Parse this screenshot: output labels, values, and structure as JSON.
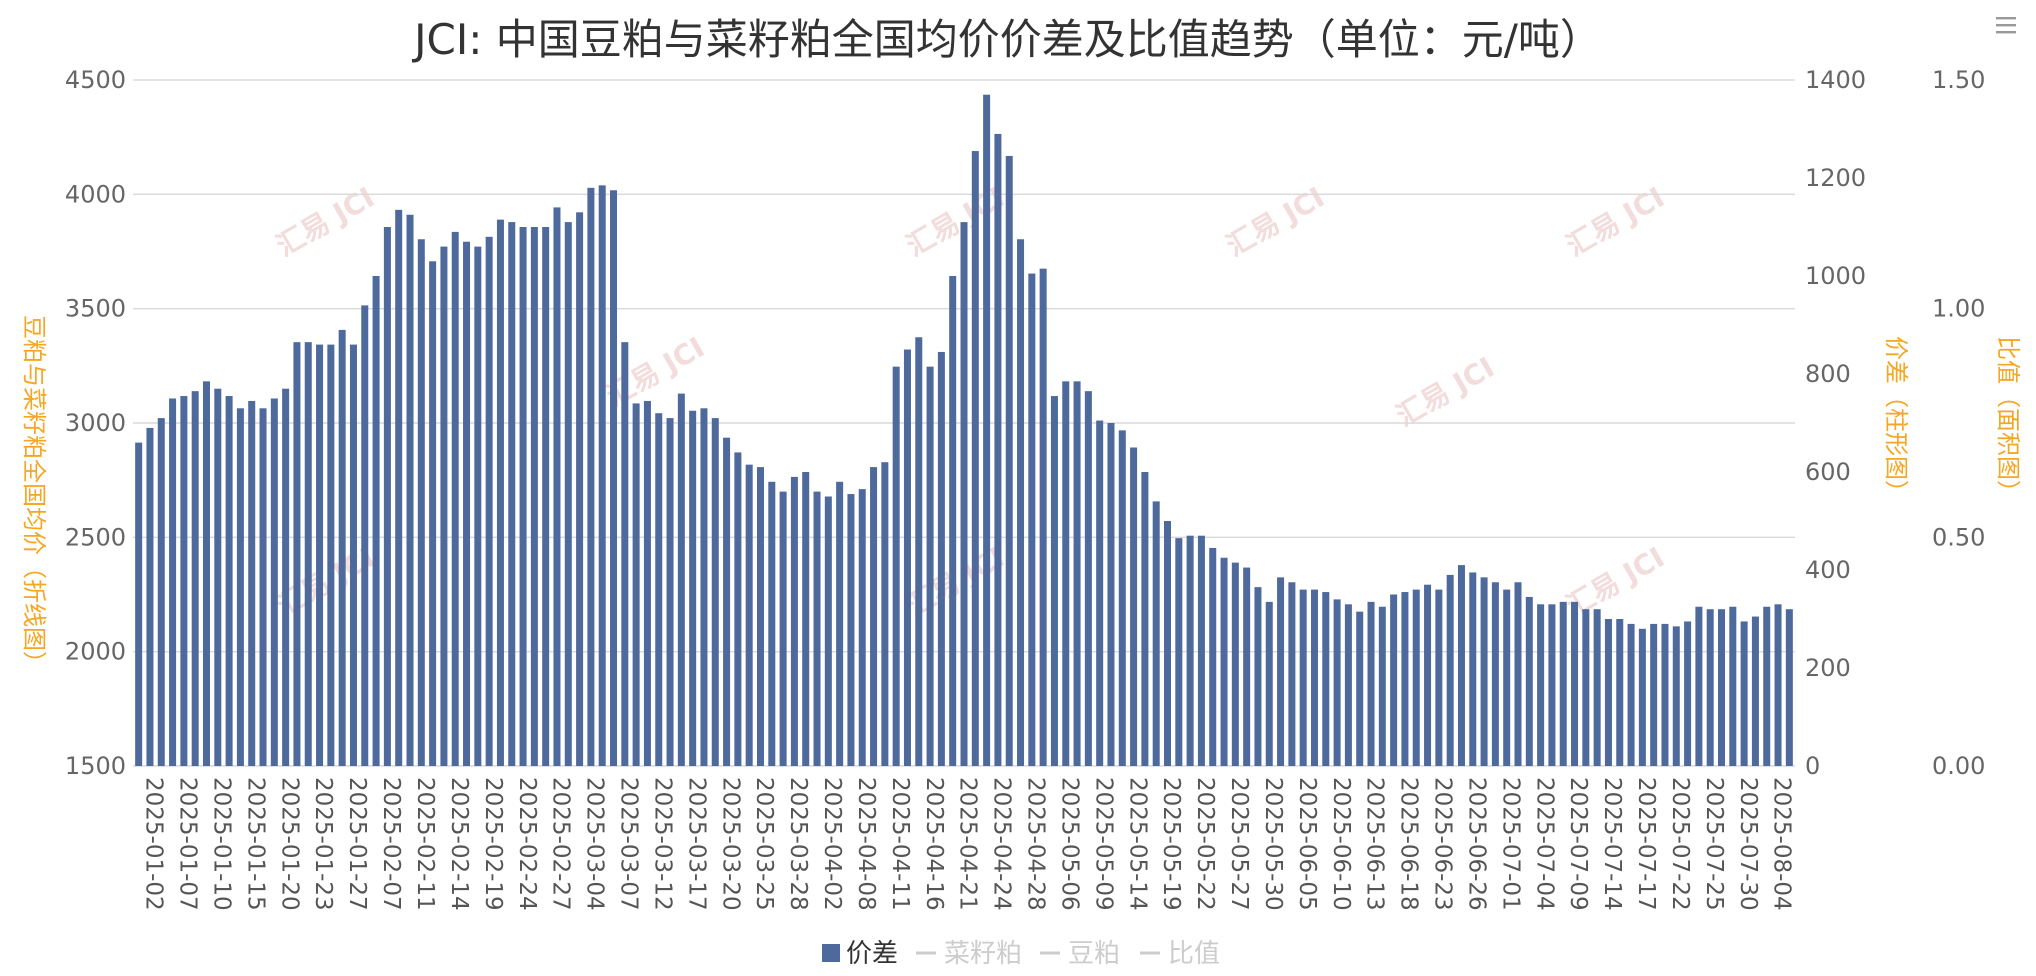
{
  "chart_data": {
    "type": "bar",
    "title": "JCI: 中国豆粕与菜籽粕全国均价价差及比值趋势（单位：元/吨）",
    "y_left_label": "豆粕与菜籽粕全国均价（折线图）",
    "y_right1_label": "价差（柱形图）",
    "y_right2_label": "比值（面积图）",
    "y_left_ticks": [
      "4500",
      "4000",
      "3500",
      "3000",
      "2500",
      "2000",
      "1500"
    ],
    "y_right1_ticks": [
      "1400",
      "1200",
      "1000",
      "800",
      "600",
      "400",
      "200",
      "0"
    ],
    "y_right2_ticks": [
      "1.50",
      "1.00",
      "0.50",
      "0.00"
    ],
    "y_right1_lim": [
      0,
      1400
    ],
    "grid": true,
    "legend_position": "bottom",
    "legend": [
      {
        "name": "价差",
        "color": "#4e6a9c",
        "active": true
      },
      {
        "name": "菜籽粕",
        "color": "#cccccc",
        "active": false
      },
      {
        "name": "豆粕",
        "color": "#cccccc",
        "active": false
      },
      {
        "name": "比值",
        "color": "#cccccc",
        "active": false
      }
    ],
    "x_tick_labels": [
      "2025-01-02",
      "2025-01-07",
      "2025-01-10",
      "2025-01-15",
      "2025-01-20",
      "2025-01-23",
      "2025-01-27",
      "2025-02-07",
      "2025-02-11",
      "2025-02-14",
      "2025-02-19",
      "2025-02-24",
      "2025-02-27",
      "2025-03-04",
      "2025-03-07",
      "2025-03-12",
      "2025-03-17",
      "2025-03-20",
      "2025-03-25",
      "2025-03-28",
      "2025-04-02",
      "2025-04-08",
      "2025-04-11",
      "2025-04-16",
      "2025-04-21",
      "2025-04-24",
      "2025-04-28",
      "2025-05-06",
      "2025-05-09",
      "2025-05-14",
      "2025-05-19",
      "2025-05-22",
      "2025-05-27",
      "2025-05-30",
      "2025-06-05",
      "2025-06-10",
      "2025-06-13",
      "2025-06-18",
      "2025-06-23",
      "2025-06-26",
      "2025-07-01",
      "2025-07-04",
      "2025-07-09",
      "2025-07-14",
      "2025-07-17",
      "2025-07-22",
      "2025-07-25",
      "2025-07-30",
      "2025-08-04"
    ],
    "series": [
      {
        "name": "价差",
        "color": "#4e6a9c",
        "values": [
          660,
          690,
          710,
          750,
          755,
          765,
          785,
          770,
          755,
          730,
          745,
          730,
          750,
          770,
          865,
          865,
          860,
          860,
          890,
          860,
          940,
          1000,
          1100,
          1135,
          1125,
          1075,
          1030,
          1060,
          1090,
          1070,
          1060,
          1080,
          1115,
          1110,
          1100,
          1100,
          1100,
          1140,
          1110,
          1130,
          1180,
          1185,
          1175,
          865,
          740,
          745,
          720,
          710,
          760,
          725,
          730,
          710,
          670,
          640,
          615,
          610,
          580,
          560,
          590,
          600,
          560,
          550,
          580,
          555,
          565,
          610,
          620,
          815,
          850,
          875,
          815,
          845,
          1000,
          1110,
          1255,
          1370,
          1290,
          1245,
          1075,
          1005,
          1015,
          755,
          785,
          785,
          765,
          705,
          700,
          685,
          650,
          600,
          540,
          500,
          465,
          470,
          470,
          445,
          425,
          415,
          405,
          365,
          335,
          385,
          375,
          360,
          360,
          355,
          340,
          330,
          315,
          335,
          325,
          350,
          355,
          360,
          370,
          360,
          390,
          410,
          395,
          385,
          375,
          360,
          375,
          345,
          330,
          330,
          335,
          335,
          320,
          320,
          300,
          300,
          290,
          280,
          290,
          290,
          285,
          295,
          325,
          320,
          320,
          325,
          295,
          305,
          325,
          330,
          320
        ]
      }
    ]
  },
  "watermark_text": "汇易 JCI",
  "menu_icon": "hamburger-menu-icon"
}
